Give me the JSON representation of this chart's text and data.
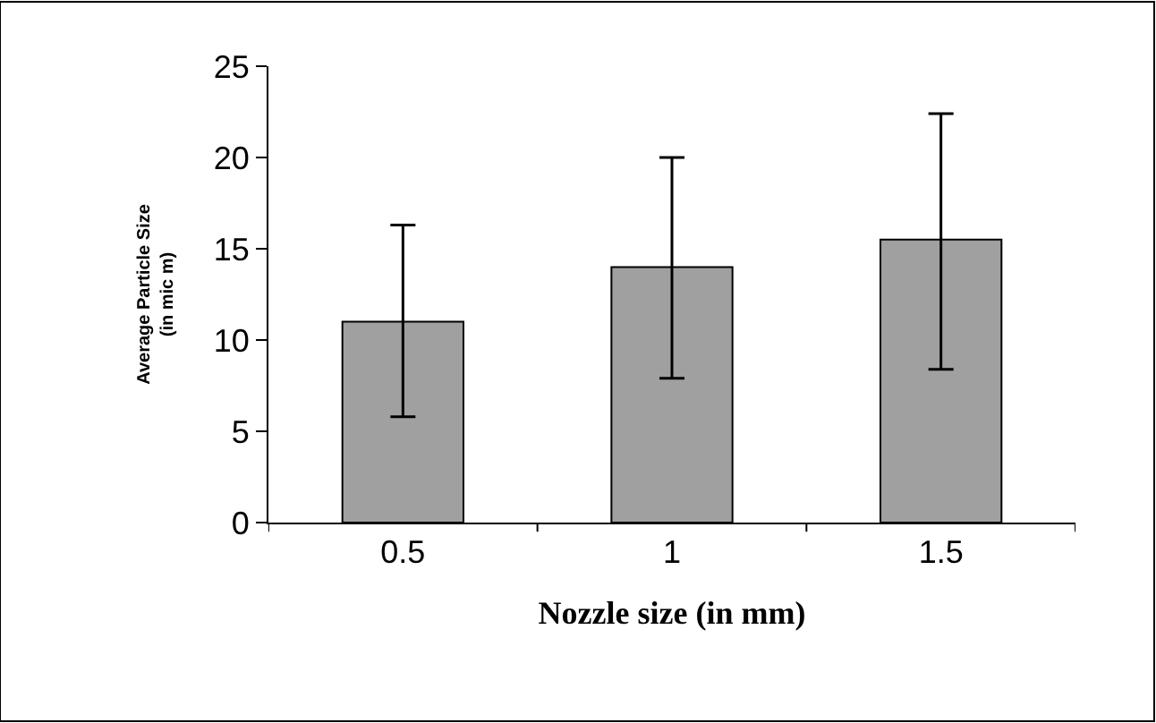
{
  "chart_data": {
    "type": "bar",
    "xlabel": "Nozzle size (in mm)",
    "ylabel": "Average Particle Size\n(in mic m)",
    "categories": [
      "0.5",
      "1",
      "1.5"
    ],
    "values": [
      11,
      14,
      15.5
    ],
    "errors": [
      [
        5.8,
        16.3
      ],
      [
        7.9,
        20
      ],
      [
        8.4,
        22.4
      ]
    ],
    "color": "#a0a0a0",
    "ylim": [
      0,
      25
    ],
    "yticks": [
      0,
      5,
      10,
      15,
      20,
      25
    ]
  }
}
